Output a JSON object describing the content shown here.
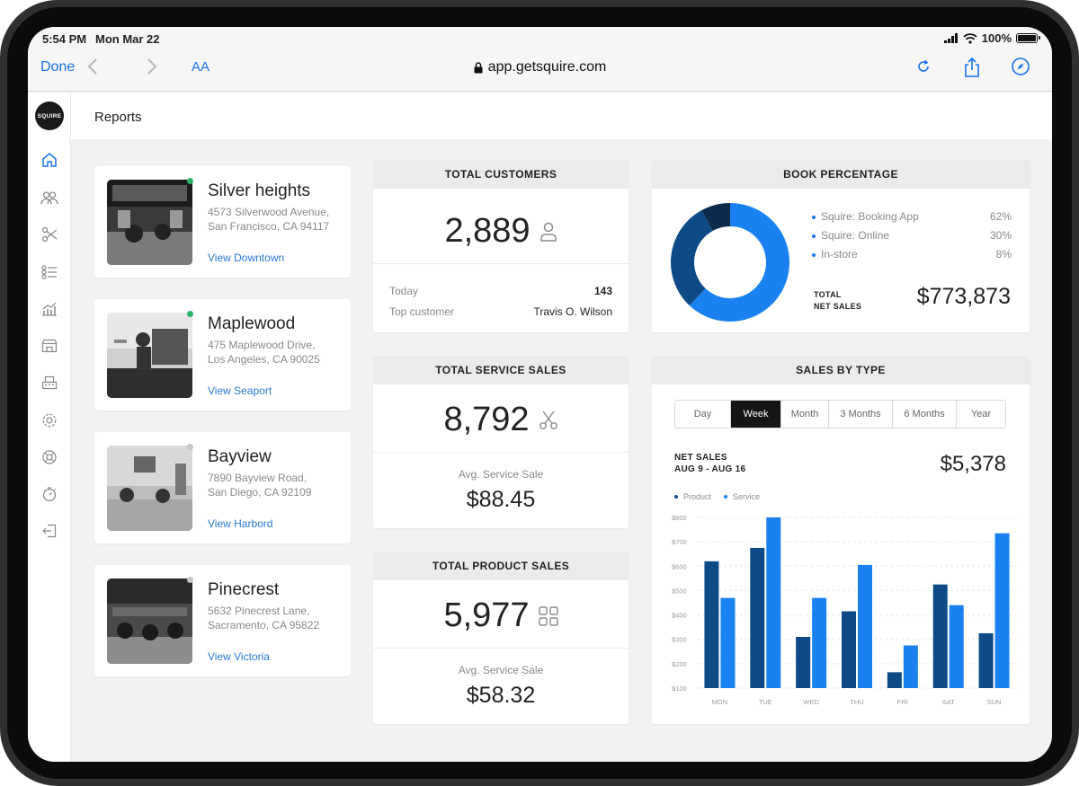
{
  "status_bar": {
    "time": "5:54 PM",
    "date": "Mon Mar 22",
    "battery": "100%"
  },
  "browser": {
    "done_label": "Done",
    "text_size_label": "AA",
    "url": "app.getsquire.com"
  },
  "app": {
    "logo_text": "SQUIRE",
    "page_title": "Reports",
    "sidebar_icons": [
      "home-icon",
      "clients-icon",
      "scissors-icon",
      "list-icon",
      "analytics-icon",
      "store-icon",
      "register-icon",
      "settings-icon",
      "help-icon",
      "timer-icon",
      "logout-icon"
    ]
  },
  "shops": [
    {
      "name": "Silver heights",
      "address1": "4573 Silverwood Avenue,",
      "address2": "San Francisco, CA 94117",
      "link": "View Downtown",
      "status_color": "#2fb36b"
    },
    {
      "name": "Maplewood",
      "address1": "475 Maplewood Drive,",
      "address2": "Los Angeles, CA 90025",
      "link": "View Seaport",
      "status_color": "#2fb36b"
    },
    {
      "name": "Bayview",
      "address1": "7890 Bayview Road,",
      "address2": "San Diego, CA 92109",
      "link": "View Harbord",
      "status_color": "#c6c6c6"
    },
    {
      "name": "Pinecrest",
      "address1": "5632 Pinecrest Lane,",
      "address2": "Sacramento, CA 95822",
      "link": "View Victoria",
      "status_color": "#c6c6c6"
    }
  ],
  "total_customers": {
    "title": "TOTAL CUSTOMERS",
    "value": "2,889",
    "today_label": "Today",
    "today_value": "143",
    "top_customer_label": "Top customer",
    "top_customer_value": "Travis O. Wilson"
  },
  "total_service_sales": {
    "title": "TOTAL SERVICE SALES",
    "value": "8,792",
    "avg_label": "Avg. Service Sale",
    "avg_value": "$88.45"
  },
  "total_product_sales": {
    "title": "TOTAL PRODUCT SALES",
    "value": "5,977",
    "avg_label": "Avg. Service Sale",
    "avg_value": "$58.32"
  },
  "book_percentage": {
    "title": "BOOK PERCENTAGE",
    "rows": [
      {
        "label": "Squire: Booking App",
        "value": "62%"
      },
      {
        "label": "Squire: Online",
        "value": "30%"
      },
      {
        "label": "In-store",
        "value": "8%"
      }
    ],
    "total_label_line1": "TOTAL",
    "total_label_line2": "NET SALES",
    "total_value": "$773,873"
  },
  "sales_by_type": {
    "title": "SALES BY TYPE",
    "periods": [
      "Day",
      "Week",
      "Month",
      "3 Months",
      "6 Months",
      "Year"
    ],
    "active_period": "Week",
    "net_sales_label": "NET SALES",
    "date_range": "AUG 9 - AUG 16",
    "net_sales_value": "$5,378"
  },
  "colors": {
    "product": "#0d4a86",
    "service": "#1a82f0",
    "instore": "#0c2a4a",
    "accent": "#1a73e8"
  },
  "chart_data": [
    {
      "type": "pie",
      "title": "BOOK PERCENTAGE",
      "categories": [
        "Squire: Booking App",
        "Squire: Online",
        "In-store"
      ],
      "values": [
        62,
        30,
        8
      ]
    },
    {
      "type": "bar",
      "title": "SALES BY TYPE",
      "categories": [
        "MON",
        "TUE",
        "WED",
        "THU",
        "FRI",
        "SAT",
        "SUN"
      ],
      "series": [
        {
          "name": "Product",
          "values": [
            620,
            675,
            310,
            415,
            165,
            525,
            325
          ]
        },
        {
          "name": "Service",
          "values": [
            470,
            800,
            470,
            605,
            275,
            440,
            735
          ]
        }
      ],
      "y_ticks": [
        "$100",
        "$200",
        "$300",
        "$400",
        "$500",
        "$600",
        "$700",
        "$800"
      ],
      "ylim": [
        100,
        800
      ],
      "grid": true,
      "legend": "top-left"
    }
  ]
}
